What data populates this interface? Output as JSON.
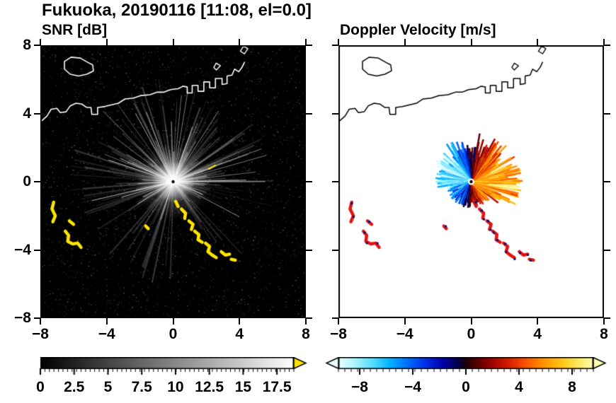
{
  "title": "Fukuoka, 20190116 [11:08, el=0.0]",
  "axes": {
    "x_range": [
      -8,
      8
    ],
    "y_range": [
      -8,
      8
    ],
    "x_tick_values": [
      -8,
      -4,
      0,
      4,
      8
    ],
    "x_tick_labels": [
      "−8",
      "−4",
      "0",
      "4",
      "8"
    ],
    "y_tick_values": [
      8,
      4,
      0,
      -4,
      -8
    ],
    "y_tick_labels": [
      "8",
      "4",
      "0",
      "−4",
      "−8"
    ]
  },
  "chart_data": {
    "type": "heatmap",
    "charts": [
      {
        "type": "heatmap",
        "title": "SNR [dB]",
        "x_range": [
          -8,
          8
        ],
        "y_range": [
          -8,
          8
        ],
        "background": "#000000",
        "radar_center": [
          0,
          0
        ],
        "colorbar": {
          "range": [
            0,
            18.75
          ],
          "tick_values": [
            0,
            2.5,
            5,
            7.5,
            10,
            12.5,
            15,
            17.5
          ],
          "tick_labels": [
            "0",
            "2.5",
            "5",
            "7.5",
            "10",
            "12.5",
            "15",
            "17.5"
          ],
          "stops": [
            [
              0,
              "#000000"
            ],
            [
              1,
              "#ffffff"
            ]
          ],
          "over_arrow_color": "#ffe400",
          "minor_ticks": 56
        }
      },
      {
        "type": "heatmap",
        "title": "Doppler Velocity [m/s]",
        "x_range": [
          -8,
          8
        ],
        "y_range": [
          -8,
          8
        ],
        "background": "#ffffff",
        "radar_center": [
          0,
          0
        ],
        "colorbar": {
          "range": [
            -9.6,
            9.6
          ],
          "tick_values": [
            -8,
            -4,
            0,
            4,
            8
          ],
          "tick_labels": [
            "−8",
            "−4",
            "0",
            "4",
            "8"
          ],
          "stops": [
            [
              0,
              "#e8ffff"
            ],
            [
              0.06,
              "#b0f6ff"
            ],
            [
              0.13,
              "#58e0ff"
            ],
            [
              0.2,
              "#00b4ff"
            ],
            [
              0.27,
              "#0070ff"
            ],
            [
              0.34,
              "#0030e8"
            ],
            [
              0.41,
              "#0000a8"
            ],
            [
              0.47,
              "#000048"
            ],
            [
              0.5,
              "#180008"
            ],
            [
              0.53,
              "#480000"
            ],
            [
              0.59,
              "#900000"
            ],
            [
              0.66,
              "#d01800"
            ],
            [
              0.73,
              "#f85000"
            ],
            [
              0.8,
              "#ff9000"
            ],
            [
              0.88,
              "#ffc818"
            ],
            [
              0.94,
              "#ffe860"
            ],
            [
              1,
              "#ffffb0"
            ]
          ],
          "under_arrow_color": "#e8ffff",
          "over_arrow_color": "#ffffb0",
          "minor_ticks": 40
        }
      }
    ],
    "overlays": {
      "coastline_main": [
        [
          -8,
          3.5
        ],
        [
          -7.6,
          3.85
        ],
        [
          -7.35,
          4.25
        ],
        [
          -7.0,
          4.3
        ],
        [
          -6.8,
          4.05
        ],
        [
          -6.45,
          4.1
        ],
        [
          -6.2,
          4.45
        ],
        [
          -5.85,
          4.6
        ],
        [
          -5.5,
          4.55
        ],
        [
          -5.2,
          4.35
        ],
        [
          -4.95,
          4.35
        ],
        [
          -4.9,
          3.95
        ],
        [
          -4.55,
          3.95
        ],
        [
          -4.55,
          4.35
        ],
        [
          -4.15,
          4.4
        ],
        [
          -3.75,
          4.5
        ],
        [
          -3.3,
          4.6
        ],
        [
          -2.9,
          4.85
        ],
        [
          -2.4,
          4.9
        ],
        [
          -1.95,
          5.05
        ],
        [
          -1.4,
          5.1
        ],
        [
          -0.95,
          5.25
        ],
        [
          -0.55,
          5.25
        ],
        [
          -0.15,
          5.4
        ],
        [
          0.3,
          5.45
        ],
        [
          0.6,
          5.6
        ],
        [
          0.85,
          5.55
        ],
        [
          0.85,
          5.2
        ],
        [
          1.15,
          5.2
        ],
        [
          1.15,
          5.65
        ],
        [
          1.5,
          5.65
        ],
        [
          1.5,
          5.3
        ],
        [
          1.85,
          5.3
        ],
        [
          1.85,
          5.85
        ],
        [
          2.2,
          5.85
        ],
        [
          2.2,
          5.5
        ],
        [
          2.55,
          5.5
        ],
        [
          2.55,
          6.05
        ],
        [
          2.95,
          6.05
        ],
        [
          2.95,
          5.7
        ],
        [
          3.25,
          5.75
        ],
        [
          3.25,
          6.2
        ],
        [
          3.55,
          6.25
        ],
        [
          3.7,
          6.6
        ],
        [
          3.95,
          6.45
        ],
        [
          4.15,
          6.7
        ],
        [
          4.3,
          7.0
        ]
      ],
      "island": [
        [
          -6.55,
          7.05
        ],
        [
          -6.15,
          7.3
        ],
        [
          -5.6,
          7.25
        ],
        [
          -5.15,
          7.0
        ],
        [
          -4.85,
          6.85
        ],
        [
          -4.8,
          6.5
        ],
        [
          -5.2,
          6.3
        ],
        [
          -5.7,
          6.2
        ],
        [
          -6.2,
          6.3
        ],
        [
          -6.55,
          6.6
        ]
      ],
      "islets": [
        [
          [
            2.45,
            6.7
          ],
          [
            2.6,
            6.95
          ],
          [
            2.85,
            6.8
          ],
          [
            2.6,
            6.55
          ]
        ],
        [
          [
            4.05,
            7.65
          ],
          [
            4.25,
            7.95
          ],
          [
            4.5,
            7.8
          ],
          [
            4.3,
            7.5
          ]
        ]
      ],
      "echo_paths": [
        [
          [
            -7.2,
            -1.2
          ],
          [
            -7.3,
            -1.6
          ],
          [
            -7.1,
            -2.0
          ],
          [
            -7.25,
            -2.35
          ]
        ],
        [
          [
            -6.25,
            -2.3
          ],
          [
            -6.0,
            -2.5
          ]
        ],
        [
          [
            -6.5,
            -2.9
          ],
          [
            -6.3,
            -3.15
          ],
          [
            -6.35,
            -3.5
          ],
          [
            -6.05,
            -3.65
          ],
          [
            -5.75,
            -3.6
          ],
          [
            -5.55,
            -3.85
          ]
        ],
        [
          [
            0.15,
            -1.15
          ],
          [
            0.3,
            -1.45
          ]
        ],
        [
          [
            0.5,
            -1.6
          ],
          [
            0.75,
            -1.85
          ],
          [
            0.7,
            -2.15
          ]
        ],
        [
          [
            0.95,
            -2.3
          ],
          [
            1.2,
            -2.5
          ],
          [
            1.1,
            -2.8
          ]
        ],
        [
          [
            1.3,
            -2.9
          ],
          [
            1.55,
            -3.1
          ],
          [
            1.5,
            -3.4
          ],
          [
            1.75,
            -3.55
          ]
        ],
        [
          [
            1.95,
            -3.6
          ],
          [
            2.2,
            -3.8
          ],
          [
            2.1,
            -4.1
          ],
          [
            2.35,
            -4.3
          ],
          [
            2.6,
            -4.45
          ]
        ],
        [
          [
            2.9,
            -4.1
          ],
          [
            3.15,
            -4.3
          ],
          [
            3.4,
            -4.25
          ]
        ],
        [
          [
            3.5,
            -4.55
          ],
          [
            3.75,
            -4.6
          ]
        ],
        [
          [
            -1.65,
            -2.6
          ],
          [
            -1.5,
            -2.75
          ]
        ]
      ],
      "snr_streak": [
        [
          2.15,
          0.75
        ],
        [
          2.55,
          0.95
        ]
      ],
      "snr_rays": {
        "count": 560,
        "bright_count": 46,
        "dark_sectors": [
          [
            245,
            300,
            0.82
          ],
          [
            200,
            245,
            0.5
          ],
          [
            300,
            325,
            0.4
          ]
        ]
      },
      "doppler_fan": {
        "step_deg": 1.0,
        "gap_prob": 0.1,
        "v_amp": 7.2,
        "noise": 2.0,
        "r_base": 0.85,
        "r_var": 1.45,
        "boost_sectors": [
          [
            -40,
            80,
            1.35
          ],
          [
            100,
            150,
            1.2
          ]
        ],
        "shrink_sectors": [
          [
            190,
            330,
            0.7
          ]
        ],
        "nw_extra_negative": [
          100,
          160,
          1.8
        ]
      },
      "echo_color_snr": "#ffe400",
      "echo_color_doppler": "#e31212",
      "echo_speck_color": "#001078",
      "coast_color_snr": "#ffffff",
      "coast_color_doppler": "#000000"
    }
  }
}
